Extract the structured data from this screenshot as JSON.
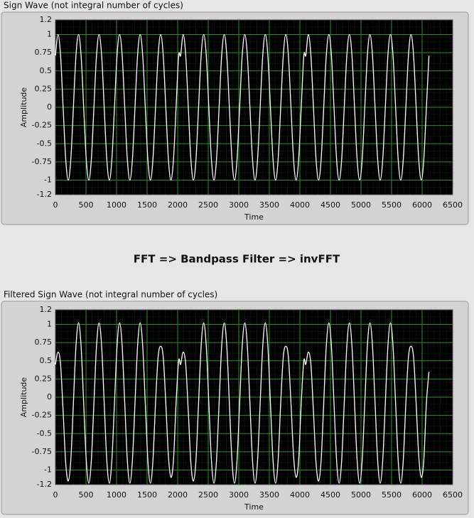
{
  "annotation": "FFT => Bandpass Filter => invFFT",
  "chart_data": [
    {
      "type": "line",
      "title": "Sign Wave (not integral number of cycles)",
      "xlabel": "Time",
      "ylabel": "Amplitude",
      "color": "#ffffff",
      "plot_background": "#000000",
      "grid": true,
      "grid_color": "#2f8a2f",
      "xlim": [
        0,
        6500
      ],
      "xticks": [
        0,
        500,
        1000,
        1500,
        2000,
        2500,
        3000,
        3500,
        4000,
        4500,
        5000,
        5500,
        6000,
        6500
      ],
      "ylim": [
        -1.2,
        1.2
      ],
      "yticks": [
        -1.2,
        -1,
        -0.75,
        -0.5,
        -0.25,
        0,
        0.25,
        0.5,
        0.75,
        1,
        1.2
      ],
      "x": [
        0,
        42,
        84,
        126,
        168,
        210,
        252,
        294,
        336,
        378,
        420,
        462,
        504,
        546,
        588,
        630,
        672,
        714,
        756,
        798,
        840,
        882,
        924,
        966,
        1008,
        1050,
        1092,
        1134,
        1176,
        1218,
        1260,
        1302,
        1344,
        1386,
        1428,
        1470,
        1512,
        1554,
        1596,
        1638,
        1680,
        1722,
        1764,
        1806,
        1848,
        1890,
        1932,
        1974,
        2016,
        2048,
        2090,
        2132,
        2174,
        2216,
        2258,
        2300,
        2342,
        2384,
        2426,
        2468,
        2510,
        2552,
        2594,
        2636,
        2678,
        2720,
        2762,
        2804,
        2846,
        2888,
        2930,
        2972,
        3014,
        3056,
        3098,
        3140,
        3182,
        3224,
        3266,
        3308,
        3350,
        3392,
        3434,
        3476,
        3518,
        3560,
        3602,
        3644,
        3686,
        3728,
        3770,
        3812,
        3854,
        3896,
        3938,
        3980,
        4022,
        4064,
        4096,
        4138,
        4180,
        4222,
        4264,
        4306,
        4348,
        4390,
        4432,
        4474,
        4516,
        4558,
        4600,
        4642,
        4684,
        4726,
        4768,
        4810,
        4852,
        4894,
        4936,
        4978,
        5020,
        5062,
        5104,
        5146,
        5188,
        5230,
        5272,
        5314,
        5356,
        5398,
        5440,
        5482,
        5524,
        5566,
        5608,
        5650,
        5692,
        5734,
        5776,
        5818,
        5860,
        5902,
        5944,
        5986,
        6028,
        6070,
        6112
      ],
      "values": [
        0.71,
        1,
        0.71,
        0,
        -0.71,
        -1,
        -0.71,
        0,
        0.71,
        1,
        0.71,
        0,
        -0.71,
        -1,
        -0.71,
        0,
        0.71,
        1,
        0.71,
        0,
        -0.71,
        -1,
        -0.71,
        0,
        0.71,
        1,
        0.71,
        0,
        -0.71,
        -1,
        -0.71,
        0,
        0.71,
        1,
        0.71,
        0,
        -0.71,
        -1,
        -0.71,
        0,
        0.71,
        1,
        0.71,
        0,
        -0.71,
        -1,
        -0.71,
        0,
        0.71,
        0.71,
        1,
        0.71,
        0,
        -0.71,
        -1,
        -0.71,
        0,
        0.71,
        1,
        0.71,
        0,
        -0.71,
        -1,
        -0.71,
        0,
        0.71,
        1,
        0.71,
        0,
        -0.71,
        -1,
        -0.71,
        0,
        0.71,
        1,
        0.71,
        0,
        -0.71,
        -1,
        -0.71,
        0,
        0.71,
        1,
        0.71,
        0,
        -0.71,
        -1,
        -0.71,
        0,
        0.71,
        1,
        0.71,
        0,
        -0.71,
        -1,
        -0.71,
        0,
        0.71,
        0.71,
        1,
        0.71,
        0,
        -0.71,
        -1,
        -0.71,
        0,
        0.71,
        1,
        0.71,
        0,
        -0.71,
        -1,
        -0.71,
        0,
        0.71,
        1,
        0.71,
        0,
        -0.71,
        -1,
        -0.71,
        0,
        0.71,
        1,
        0.71,
        0,
        -0.71,
        -1,
        -0.71,
        0,
        0.71,
        1,
        0.71,
        0,
        -0.71,
        -1,
        -0.71,
        0,
        0.71,
        1,
        0.71,
        0,
        -0.71,
        -1,
        -0.71,
        0,
        0.71
      ]
    },
    {
      "type": "line",
      "title": "Filtered Sign Wave (not integral number of cycles)",
      "xlabel": "Time",
      "ylabel": "Amplitude",
      "color": "#ffffff",
      "plot_background": "#000000",
      "grid": true,
      "grid_color": "#2f8a2f",
      "xlim": [
        0,
        6500
      ],
      "xticks": [
        0,
        500,
        1000,
        1500,
        2000,
        2500,
        3000,
        3500,
        4000,
        4500,
        5000,
        5500,
        6000,
        6500
      ],
      "ylim": [
        -1.2,
        1.2
      ],
      "yticks": [
        -1.2,
        -1,
        -0.75,
        -0.5,
        -0.25,
        0,
        0.25,
        0.5,
        0.75,
        1,
        1.2
      ],
      "x": [
        0,
        42,
        84,
        126,
        168,
        210,
        252,
        294,
        336,
        378,
        420,
        462,
        504,
        546,
        588,
        630,
        672,
        714,
        756,
        798,
        840,
        882,
        924,
        966,
        1008,
        1050,
        1092,
        1134,
        1176,
        1218,
        1260,
        1302,
        1344,
        1386,
        1428,
        1470,
        1512,
        1554,
        1596,
        1638,
        1680,
        1722,
        1764,
        1806,
        1848,
        1890,
        1932,
        1974,
        2016,
        2048,
        2090,
        2132,
        2174,
        2216,
        2258,
        2300,
        2342,
        2384,
        2426,
        2468,
        2510,
        2552,
        2594,
        2636,
        2678,
        2720,
        2762,
        2804,
        2846,
        2888,
        2930,
        2972,
        3014,
        3056,
        3098,
        3140,
        3182,
        3224,
        3266,
        3308,
        3350,
        3392,
        3434,
        3476,
        3518,
        3560,
        3602,
        3644,
        3686,
        3728,
        3770,
        3812,
        3854,
        3896,
        3938,
        3980,
        4022,
        4064,
        4096,
        4138,
        4180,
        4222,
        4264,
        4306,
        4348,
        4390,
        4432,
        4474,
        4516,
        4558,
        4600,
        4642,
        4684,
        4726,
        4768,
        4810,
        4852,
        4894,
        4936,
        4978,
        5020,
        5062,
        5104,
        5146,
        5188,
        5230,
        5272,
        5314,
        5356,
        5398,
        5440,
        5482,
        5524,
        5566,
        5608,
        5650,
        5692,
        5734,
        5776,
        5818,
        5860,
        5902,
        5944,
        5986,
        6028,
        6070,
        6112
      ],
      "values": [
        0.45,
        0.62,
        0.45,
        -0.2,
        -0.9,
        -1.15,
        -0.86,
        -0.08,
        0.7,
        1.02,
        0.7,
        -0.08,
        -0.86,
        -1.18,
        -0.86,
        -0.08,
        0.7,
        1.02,
        0.7,
        -0.08,
        -0.86,
        -1.18,
        -0.86,
        -0.08,
        0.7,
        1.02,
        0.7,
        -0.08,
        -0.86,
        -1.18,
        -0.86,
        -0.08,
        0.7,
        1.02,
        0.7,
        -0.08,
        -0.86,
        -1.18,
        -0.86,
        -0.08,
        0.55,
        0.7,
        0.55,
        -0.08,
        -0.8,
        -1.1,
        -0.86,
        -0.08,
        0.5,
        0.45,
        0.62,
        0.45,
        -0.2,
        -0.9,
        -1.15,
        -0.86,
        -0.08,
        0.7,
        1.02,
        0.7,
        -0.08,
        -0.86,
        -1.18,
        -0.86,
        -0.08,
        0.7,
        1.02,
        0.7,
        -0.08,
        -0.86,
        -1.18,
        -0.86,
        -0.08,
        0.7,
        1.02,
        0.7,
        -0.08,
        -0.86,
        -1.18,
        -0.86,
        -0.08,
        0.7,
        1.02,
        0.7,
        -0.08,
        -0.86,
        -1.18,
        -0.86,
        -0.08,
        0.55,
        0.7,
        0.55,
        -0.08,
        -0.8,
        -1.1,
        -0.86,
        -0.08,
        0.5,
        0.45,
        0.62,
        0.45,
        -0.2,
        -0.9,
        -1.15,
        -0.86,
        -0.08,
        0.7,
        1.02,
        0.7,
        -0.08,
        -0.86,
        -1.18,
        -0.86,
        -0.08,
        0.7,
        1.02,
        0.7,
        -0.08,
        -0.86,
        -1.18,
        -0.86,
        -0.08,
        0.7,
        1.02,
        0.7,
        -0.08,
        -0.86,
        -1.18,
        -0.86,
        -0.08,
        0.7,
        1.02,
        0.7,
        -0.08,
        -0.86,
        -1.18,
        -0.86,
        -0.08,
        0.55,
        0.7,
        0.55,
        -0.08,
        -0.8,
        -1.1,
        -0.86,
        -0.08,
        0.35
      ]
    }
  ]
}
